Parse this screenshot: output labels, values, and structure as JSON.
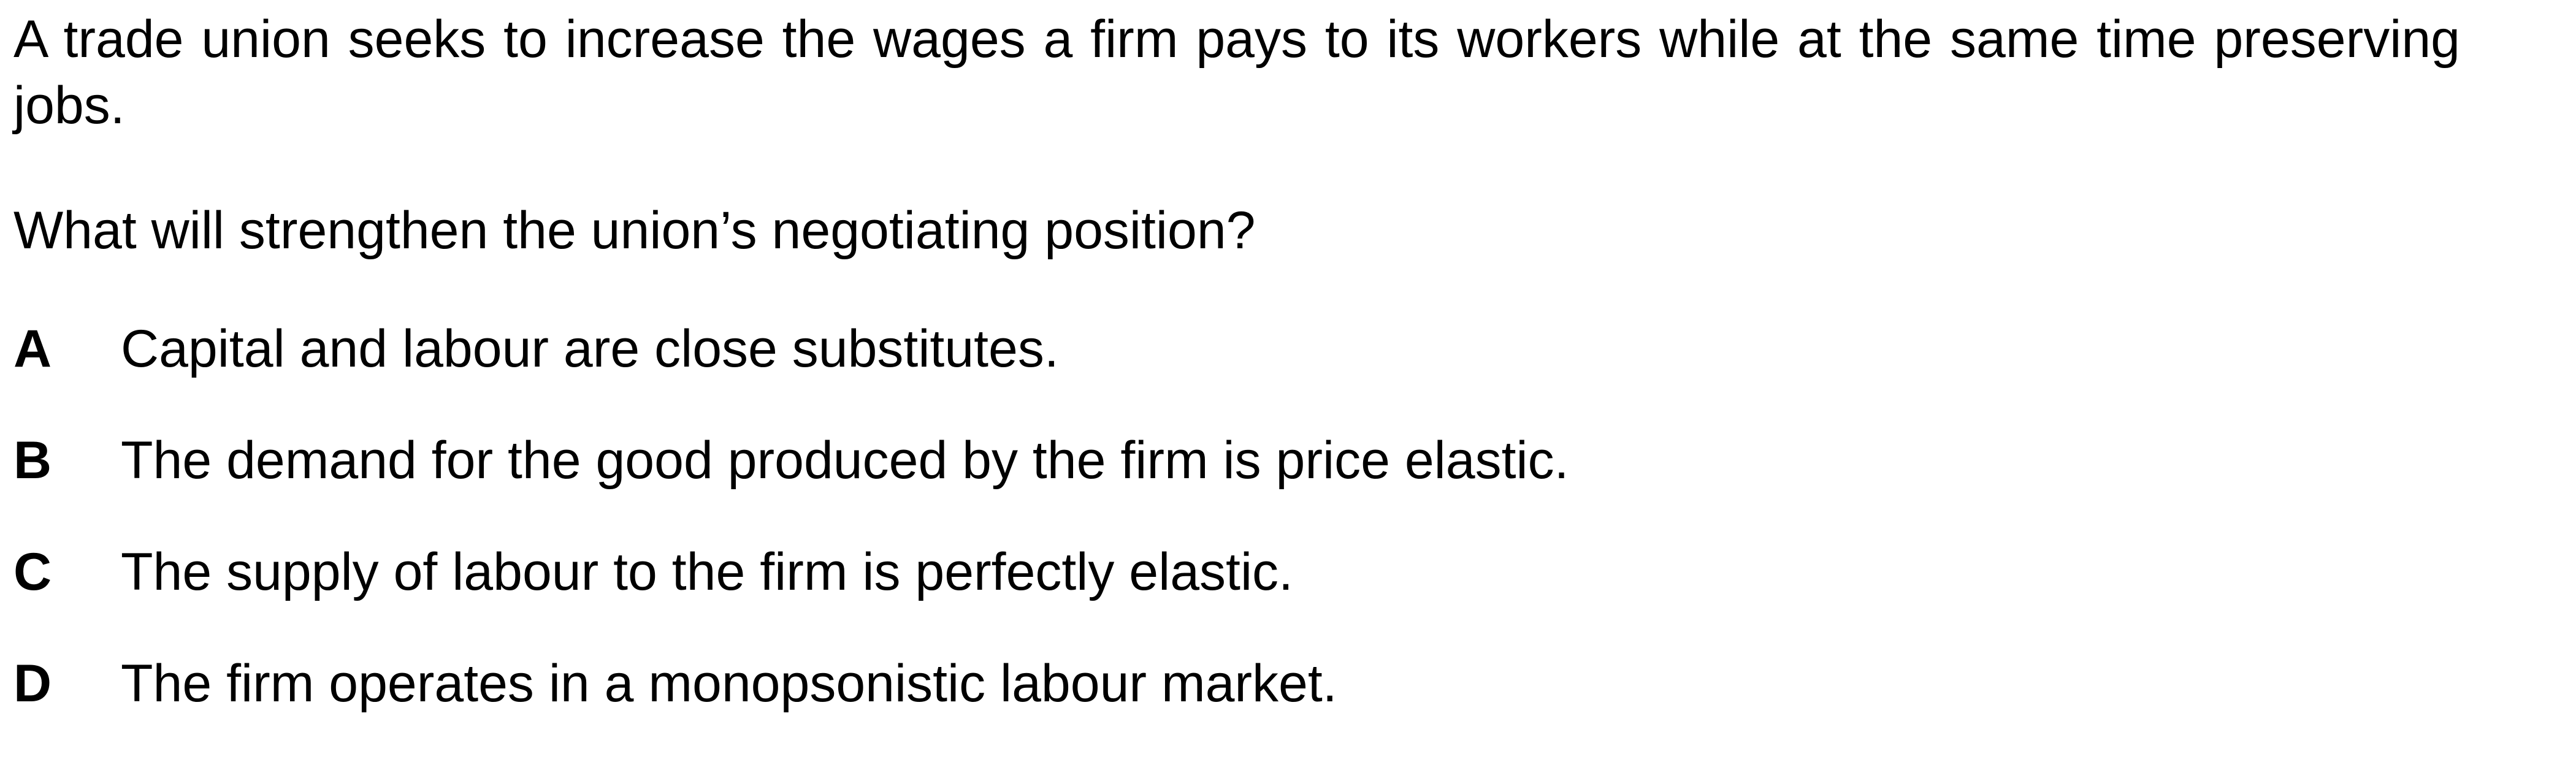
{
  "question": {
    "stem": "A trade union seeks to increase the wages a firm pays to its workers while at the same time preserving jobs.",
    "prompt": "What will strengthen the union’s negotiating position?"
  },
  "options": [
    {
      "letter": "A",
      "text": "Capital and labour are close substitutes."
    },
    {
      "letter": "B",
      "text": "The demand for the good produced by the firm is price elastic."
    },
    {
      "letter": "C",
      "text": "The supply of labour to the firm is perfectly elastic."
    },
    {
      "letter": "D",
      "text": "The firm operates in a monopsonistic labour market."
    }
  ]
}
